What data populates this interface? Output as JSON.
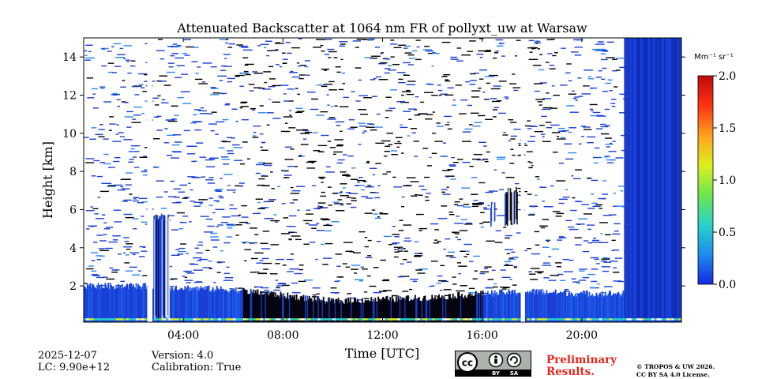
{
  "chart_data": {
    "type": "heatmap",
    "title": "Attenuated Backscatter at 1064 nm FR of pollyxt_uw at Warsaw",
    "xlabel": "Time [UTC]",
    "ylabel": "Height [km]",
    "xlim_hours": [
      0,
      24
    ],
    "ylim_km": [
      0.1,
      15
    ],
    "x_ticks": [
      {
        "hour": 4,
        "label": "04:00"
      },
      {
        "hour": 8,
        "label": "08:00"
      },
      {
        "hour": 12,
        "label": "12:00"
      },
      {
        "hour": 16,
        "label": "16:00"
      },
      {
        "hour": 20,
        "label": "20:00"
      }
    ],
    "y_ticks": [
      {
        "km": 2,
        "label": "2"
      },
      {
        "km": 4,
        "label": "4"
      },
      {
        "km": 6,
        "label": "6"
      },
      {
        "km": 8,
        "label": "8"
      },
      {
        "km": 10,
        "label": "10"
      },
      {
        "km": 12,
        "label": "12"
      },
      {
        "km": 14,
        "label": "14"
      }
    ],
    "colorbar": {
      "unit": "Mm⁻¹ sr⁻¹",
      "range": [
        0.0,
        2.0
      ],
      "ticks": [
        {
          "value": 0.0,
          "label": "0.0"
        },
        {
          "value": 0.5,
          "label": "0.5"
        },
        {
          "value": 1.0,
          "label": "1.0"
        },
        {
          "value": 1.5,
          "label": "1.5"
        },
        {
          "value": 2.0,
          "label": "2.0"
        }
      ],
      "colors": [
        "#1428e0",
        "#1e8cf0",
        "#28d2c8",
        "#6ee650",
        "#dcf01e",
        "#ffa01e",
        "#ff3214",
        "#be0a0a"
      ]
    },
    "features": {
      "boundary_layer_top_km": [
        {
          "hour": 0.0,
          "km": 2.0
        },
        {
          "hour": 2.0,
          "km": 2.0
        },
        {
          "hour": 4.0,
          "km": 1.9
        },
        {
          "hour": 6.0,
          "km": 1.8
        },
        {
          "hour": 8.0,
          "km": 1.5
        },
        {
          "hour": 10.0,
          "km": 1.2
        },
        {
          "hour": 12.0,
          "km": 1.3
        },
        {
          "hour": 14.0,
          "km": 1.4
        },
        {
          "hour": 16.0,
          "km": 1.6
        },
        {
          "hour": 18.0,
          "km": 1.7
        },
        {
          "hour": 20.0,
          "km": 1.6
        },
        {
          "hour": 21.6,
          "km": 1.6
        }
      ],
      "dark_signal_span_hours": [
        6.4,
        16.0
      ],
      "data_gaps_hours": [
        [
          2.55,
          2.75
        ],
        [
          17.55,
          17.7
        ]
      ],
      "cloud_columns": [
        {
          "from_hour": 2.8,
          "to_hour": 3.4,
          "base_km": 0.5,
          "top_km": 5.8
        },
        {
          "from_hour": 16.3,
          "to_hour": 16.5,
          "base_km": 5.5,
          "top_km": 6.5
        },
        {
          "from_hour": 16.9,
          "to_hour": 17.4,
          "base_km": 5.5,
          "top_km": 7.2
        }
      ],
      "full_column_signal_from_hour": 21.7,
      "surface_layer_km": 0.25
    }
  },
  "meta": {
    "date": "2025-12-07",
    "lc": "LC: 9.90e+12",
    "version": "Version: 4.0",
    "calibration": "Calibration: True"
  },
  "preliminary": {
    "line1": "Preliminary",
    "line2": "Results."
  },
  "copyright": {
    "line1": "© TROPOS & UW 2026.",
    "line2": "CC BY SA 4.0 License."
  },
  "license_badge": {
    "cc": "cc",
    "by": "BY",
    "sa": "SA"
  }
}
